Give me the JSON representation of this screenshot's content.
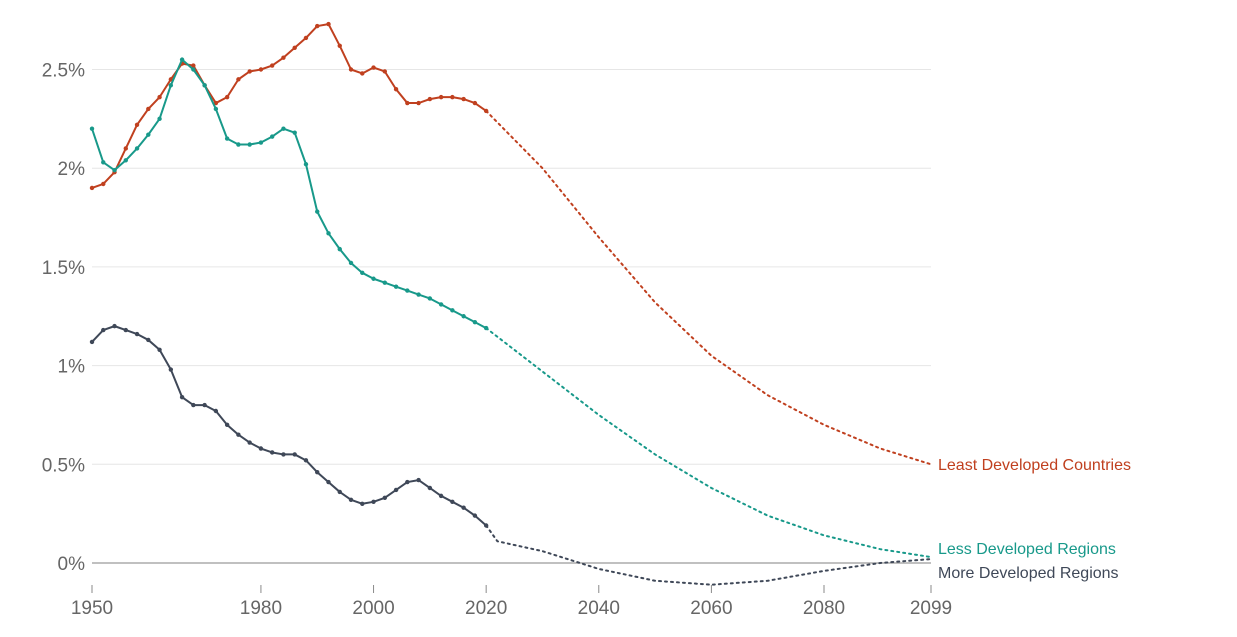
{
  "chart_data": {
    "type": "line",
    "title": "",
    "xlabel": "",
    "ylabel": "",
    "xlim": [
      1950,
      2099
    ],
    "ylim": [
      -0.15,
      2.75
    ],
    "y_unit": "%",
    "grid": true,
    "legend": "inline-right",
    "projection_starts_after": 2020,
    "x_ticks": [
      "1950",
      "1980",
      "2000",
      "2020",
      "2040",
      "2060",
      "2080",
      "2099"
    ],
    "x_tick_values": [
      1950,
      1980,
      2000,
      2020,
      2040,
      2060,
      2080,
      2099
    ],
    "y_ticks": [
      "0%",
      "0.5%",
      "1%",
      "1.5%",
      "2%",
      "2.5%"
    ],
    "y_tick_values": [
      0,
      0.5,
      1,
      1.5,
      2,
      2.5
    ],
    "series": [
      {
        "name": "Least Developed Countries",
        "color": "#c0401f",
        "historical": [
          [
            1950,
            1.9
          ],
          [
            1952,
            1.92
          ],
          [
            1954,
            1.98
          ],
          [
            1956,
            2.1
          ],
          [
            1958,
            2.22
          ],
          [
            1960,
            2.3
          ],
          [
            1962,
            2.36
          ],
          [
            1964,
            2.45
          ],
          [
            1966,
            2.53
          ],
          [
            1968,
            2.52
          ],
          [
            1970,
            2.42
          ],
          [
            1972,
            2.33
          ],
          [
            1974,
            2.36
          ],
          [
            1976,
            2.45
          ],
          [
            1978,
            2.49
          ],
          [
            1980,
            2.5
          ],
          [
            1982,
            2.52
          ],
          [
            1984,
            2.56
          ],
          [
            1986,
            2.61
          ],
          [
            1988,
            2.66
          ],
          [
            1990,
            2.72
          ],
          [
            1992,
            2.73
          ],
          [
            1994,
            2.62
          ],
          [
            1996,
            2.5
          ],
          [
            1998,
            2.48
          ],
          [
            2000,
            2.51
          ],
          [
            2002,
            2.49
          ],
          [
            2004,
            2.4
          ],
          [
            2006,
            2.33
          ],
          [
            2008,
            2.33
          ],
          [
            2010,
            2.35
          ],
          [
            2012,
            2.36
          ],
          [
            2014,
            2.36
          ],
          [
            2016,
            2.35
          ],
          [
            2018,
            2.33
          ],
          [
            2020,
            2.29
          ]
        ],
        "projection": [
          [
            2020,
            2.29
          ],
          [
            2030,
            2.0
          ],
          [
            2040,
            1.65
          ],
          [
            2050,
            1.32
          ],
          [
            2060,
            1.05
          ],
          [
            2070,
            0.85
          ],
          [
            2080,
            0.7
          ],
          [
            2090,
            0.58
          ],
          [
            2099,
            0.5
          ]
        ]
      },
      {
        "name": "Less Developed Regions",
        "color": "#18998a",
        "historical": [
          [
            1950,
            2.2
          ],
          [
            1952,
            2.03
          ],
          [
            1954,
            1.99
          ],
          [
            1956,
            2.04
          ],
          [
            1958,
            2.1
          ],
          [
            1960,
            2.17
          ],
          [
            1962,
            2.25
          ],
          [
            1964,
            2.42
          ],
          [
            1966,
            2.55
          ],
          [
            1968,
            2.5
          ],
          [
            1970,
            2.42
          ],
          [
            1972,
            2.3
          ],
          [
            1974,
            2.15
          ],
          [
            1976,
            2.12
          ],
          [
            1978,
            2.12
          ],
          [
            1980,
            2.13
          ],
          [
            1982,
            2.16
          ],
          [
            1984,
            2.2
          ],
          [
            1986,
            2.18
          ],
          [
            1988,
            2.02
          ],
          [
            1990,
            1.78
          ],
          [
            1992,
            1.67
          ],
          [
            1994,
            1.59
          ],
          [
            1996,
            1.52
          ],
          [
            1998,
            1.47
          ],
          [
            2000,
            1.44
          ],
          [
            2002,
            1.42
          ],
          [
            2004,
            1.4
          ],
          [
            2006,
            1.38
          ],
          [
            2008,
            1.36
          ],
          [
            2010,
            1.34
          ],
          [
            2012,
            1.31
          ],
          [
            2014,
            1.28
          ],
          [
            2016,
            1.25
          ],
          [
            2018,
            1.22
          ],
          [
            2020,
            1.19
          ]
        ],
        "projection": [
          [
            2020,
            1.19
          ],
          [
            2030,
            0.97
          ],
          [
            2040,
            0.75
          ],
          [
            2050,
            0.55
          ],
          [
            2060,
            0.38
          ],
          [
            2070,
            0.24
          ],
          [
            2080,
            0.14
          ],
          [
            2090,
            0.07
          ],
          [
            2099,
            0.03
          ]
        ]
      },
      {
        "name": "More Developed Regions",
        "color": "#3f4858",
        "historical": [
          [
            1950,
            1.12
          ],
          [
            1952,
            1.18
          ],
          [
            1954,
            1.2
          ],
          [
            1956,
            1.18
          ],
          [
            1958,
            1.16
          ],
          [
            1960,
            1.13
          ],
          [
            1962,
            1.08
          ],
          [
            1964,
            0.98
          ],
          [
            1966,
            0.84
          ],
          [
            1968,
            0.8
          ],
          [
            1970,
            0.8
          ],
          [
            1972,
            0.77
          ],
          [
            1974,
            0.7
          ],
          [
            1976,
            0.65
          ],
          [
            1978,
            0.61
          ],
          [
            1980,
            0.58
          ],
          [
            1982,
            0.56
          ],
          [
            1984,
            0.55
          ],
          [
            1986,
            0.55
          ],
          [
            1988,
            0.52
          ],
          [
            1990,
            0.46
          ],
          [
            1992,
            0.41
          ],
          [
            1994,
            0.36
          ],
          [
            1996,
            0.32
          ],
          [
            1998,
            0.3
          ],
          [
            2000,
            0.31
          ],
          [
            2002,
            0.33
          ],
          [
            2004,
            0.37
          ],
          [
            2006,
            0.41
          ],
          [
            2008,
            0.42
          ],
          [
            2010,
            0.38
          ],
          [
            2012,
            0.34
          ],
          [
            2014,
            0.31
          ],
          [
            2016,
            0.28
          ],
          [
            2018,
            0.24
          ],
          [
            2020,
            0.19
          ]
        ],
        "projection": [
          [
            2020,
            0.19
          ],
          [
            2022,
            0.11
          ],
          [
            2030,
            0.06
          ],
          [
            2040,
            -0.03
          ],
          [
            2050,
            -0.09
          ],
          [
            2060,
            -0.11
          ],
          [
            2070,
            -0.09
          ],
          [
            2080,
            -0.04
          ],
          [
            2090,
            0.0
          ],
          [
            2099,
            0.02
          ]
        ]
      }
    ]
  }
}
